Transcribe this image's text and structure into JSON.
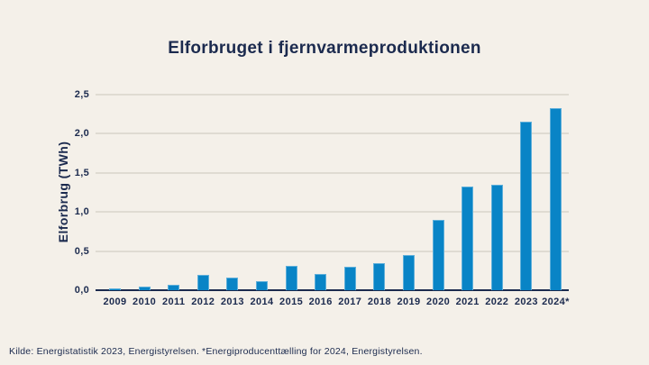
{
  "title": "Elforbruget i fjernvarmeproduktionen",
  "footer": "Kilde: Energistatistik 2023, Energistyrelsen. *Energiproducenttælling for 2024, Energistyrelsen.",
  "colors": {
    "background": "#f4f0e9",
    "text_navy": "#1b2a4e",
    "bar_blue": "#0984c6",
    "gridline": "#dfdbd2",
    "axis": "#1b2a4e"
  },
  "chart_data": {
    "type": "bar",
    "title": "Elforbruget i fjernvarmeproduktionen",
    "xlabel": "",
    "ylabel": "Elforbrug (TWh)",
    "categories": [
      "2009",
      "2010",
      "2011",
      "2012",
      "2013",
      "2014",
      "2015",
      "2016",
      "2017",
      "2018",
      "2019",
      "2020",
      "2021",
      "2022",
      "2023",
      "2024*"
    ],
    "values": [
      0.02,
      0.05,
      0.07,
      0.2,
      0.16,
      0.12,
      0.31,
      0.21,
      0.3,
      0.35,
      0.45,
      0.9,
      1.32,
      1.35,
      2.16,
      2.33
    ],
    "ylim": [
      0,
      2.5
    ],
    "ytick_step": 0.5,
    "ytick_labels": [
      "0,0",
      "0,5",
      "1,0",
      "1,5",
      "2,0",
      "2,5"
    ],
    "grid": true,
    "legend": null,
    "bar_color": "#0984c6"
  }
}
